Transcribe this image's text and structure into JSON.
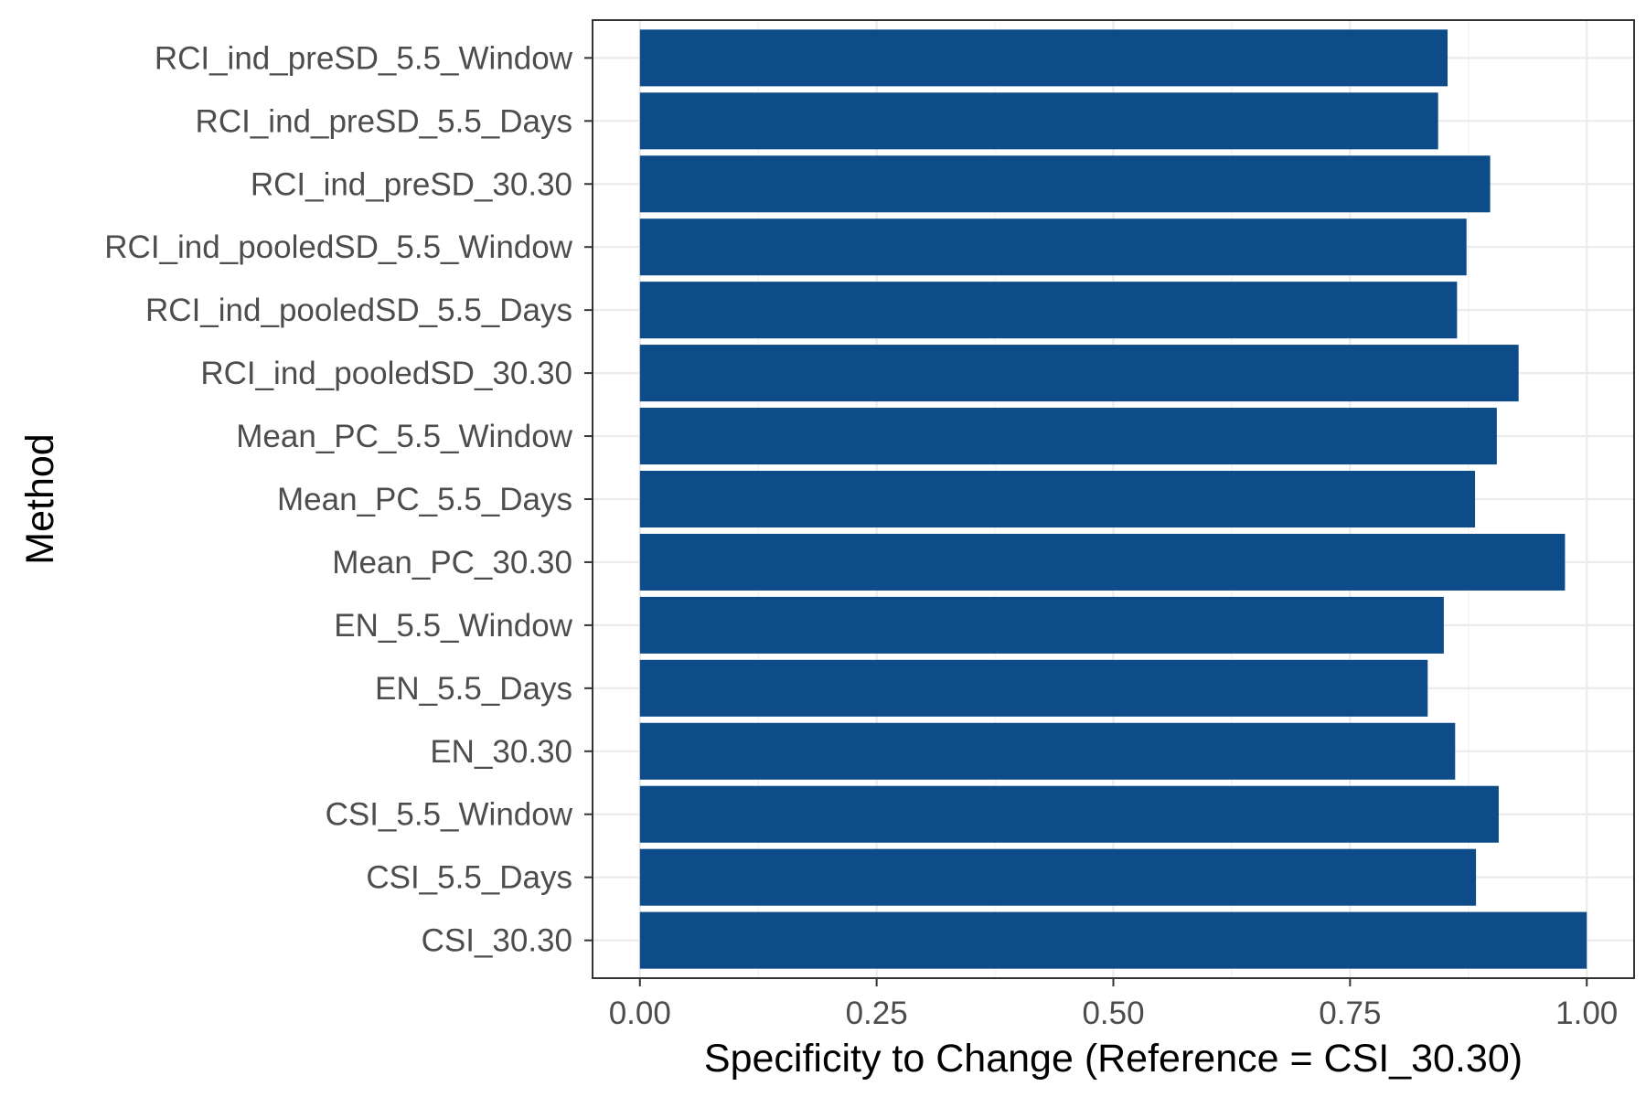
{
  "chart_data": {
    "type": "bar",
    "orientation": "horizontal",
    "title": "",
    "xlabel": "Specificity to Change (Reference = CSI_30.30)",
    "ylabel": "Method",
    "xlim": [
      -0.05,
      1.05
    ],
    "xticks": [
      0.0,
      0.25,
      0.5,
      0.75,
      1.0
    ],
    "xtick_labels": [
      "0.00",
      "0.25",
      "0.50",
      "0.75",
      "1.00"
    ],
    "grid": true,
    "legend": "none",
    "bar_color": "#0E4C89",
    "categories": [
      "RCI_ind_preSD_5.5_Window",
      "RCI_ind_preSD_5.5_Days",
      "RCI_ind_preSD_30.30",
      "RCI_ind_pooledSD_5.5_Window",
      "RCI_ind_pooledSD_5.5_Days",
      "RCI_ind_pooledSD_30.30",
      "Mean_PC_5.5_Window",
      "Mean_PC_5.5_Days",
      "Mean_PC_30.30",
      "EN_5.5_Window",
      "EN_5.5_Days",
      "EN_30.30",
      "CSI_5.5_Window",
      "CSI_5.5_Days",
      "CSI_30.30"
    ],
    "values": [
      0.853,
      0.843,
      0.898,
      0.873,
      0.863,
      0.928,
      0.905,
      0.882,
      0.977,
      0.849,
      0.832,
      0.861,
      0.907,
      0.883,
      1.0
    ]
  }
}
